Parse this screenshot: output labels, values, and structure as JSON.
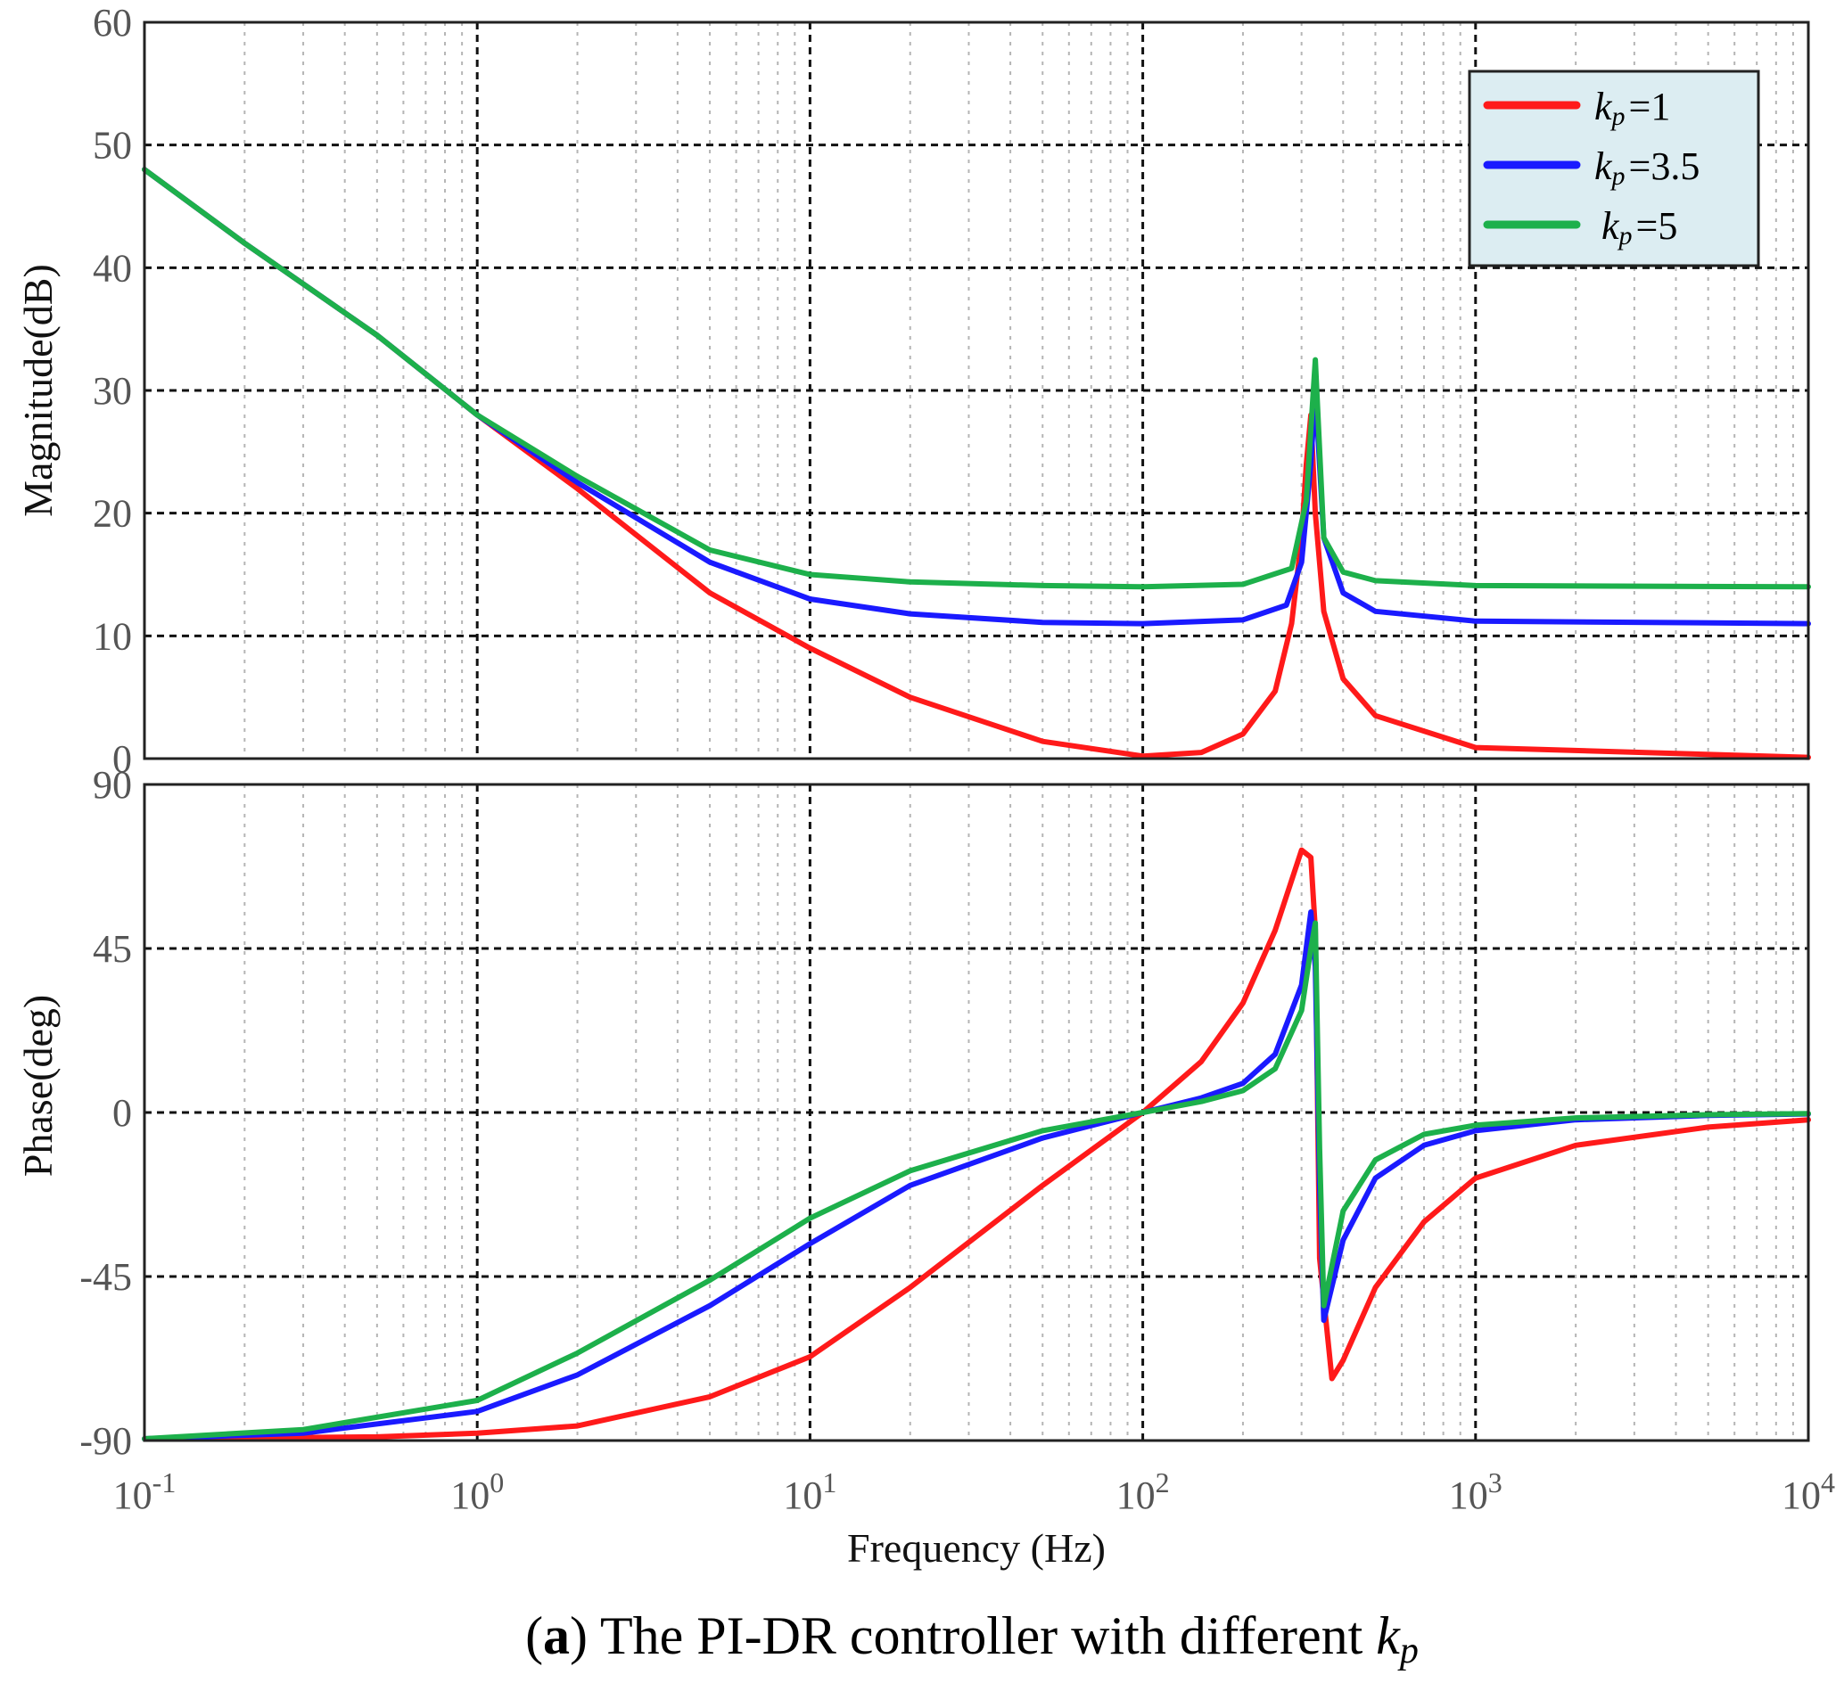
{
  "caption": {
    "bold_letter": "a",
    "text": "The PI-DR controller with different",
    "symbol": "k",
    "subscript": "p"
  },
  "chart_data": [
    {
      "type": "line",
      "panel": "magnitude",
      "xscale": "log",
      "xlim": [
        0.1,
        10000
      ],
      "ylim": [
        0,
        60
      ],
      "ylabel": "Magnitude(dB)",
      "yticks": [
        "0",
        "10",
        "20",
        "30",
        "40",
        "50",
        "60"
      ],
      "legend": {
        "placement": "top-right",
        "background": "#dcedf2",
        "symbol": "k",
        "subscript": "p",
        "entries": [
          "=1",
          "=3.5",
          "=5"
        ]
      },
      "series": [
        {
          "name": "kp=1",
          "color": "#ff1a1a",
          "x": [
            0.1,
            0.2,
            0.5,
            1,
            2,
            5,
            10,
            20,
            50,
            100,
            150,
            200,
            250,
            280,
            300,
            310,
            320,
            330,
            350,
            400,
            500,
            1000,
            10000
          ],
          "values": [
            48,
            42,
            34.5,
            28,
            22,
            13.5,
            9,
            5,
            1.4,
            0.2,
            0.5,
            2,
            5.5,
            11,
            18,
            24,
            28,
            20,
            12,
            6.5,
            3.5,
            0.9,
            0.1
          ]
        },
        {
          "name": "kp=3.5",
          "color": "#1a1aff",
          "x": [
            0.1,
            0.2,
            0.5,
            1,
            2,
            5,
            10,
            20,
            50,
            100,
            200,
            270,
            300,
            320,
            330,
            350,
            400,
            500,
            1000,
            10000
          ],
          "values": [
            48,
            42,
            34.5,
            28,
            22.5,
            16,
            13,
            11.8,
            11.1,
            11,
            11.3,
            12.5,
            16,
            24,
            30,
            18,
            13.5,
            12,
            11.2,
            11
          ]
        },
        {
          "name": "kp=5",
          "color": "#1db04b",
          "x": [
            0.1,
            0.2,
            0.5,
            1,
            2,
            5,
            10,
            20,
            50,
            100,
            200,
            280,
            310,
            330,
            350,
            400,
            500,
            1000,
            10000
          ],
          "values": [
            48,
            42,
            34.5,
            28,
            23,
            17,
            15,
            14.4,
            14.1,
            14,
            14.2,
            15.5,
            21,
            32.5,
            18,
            15.2,
            14.5,
            14.1,
            14
          ]
        }
      ]
    },
    {
      "type": "line",
      "panel": "phase",
      "xscale": "log",
      "xlim": [
        0.1,
        10000
      ],
      "ylim": [
        -90,
        90
      ],
      "xlabel": "Frequency  (Hz)",
      "ylabel": "Phase(deg)",
      "yticks": [
        "-90",
        "-45",
        "0",
        "45",
        "90"
      ],
      "xticks": [
        {
          "base": "10",
          "exp": "-1"
        },
        {
          "base": "10",
          "exp": "0"
        },
        {
          "base": "10",
          "exp": "1"
        },
        {
          "base": "10",
          "exp": "2"
        },
        {
          "base": "10",
          "exp": "3"
        },
        {
          "base": "10",
          "exp": "4"
        }
      ],
      "series": [
        {
          "name": "kp=1",
          "color": "#ff1a1a",
          "x": [
            0.1,
            0.5,
            1,
            2,
            5,
            10,
            20,
            50,
            100,
            150,
            200,
            250,
            300,
            320,
            330,
            340,
            370,
            400,
            500,
            700,
            1000,
            2000,
            5000,
            10000
          ],
          "values": [
            -89.5,
            -89,
            -88,
            -86,
            -78,
            -67,
            -48,
            -20,
            0,
            14,
            30,
            50,
            72,
            70,
            50,
            -40,
            -73,
            -68,
            -48,
            -30,
            -18,
            -9,
            -4,
            -2
          ]
        },
        {
          "name": "kp=3.5",
          "color": "#1a1aff",
          "x": [
            0.1,
            0.3,
            1,
            2,
            5,
            10,
            20,
            50,
            100,
            150,
            200,
            250,
            300,
            320,
            330,
            340,
            350,
            400,
            500,
            700,
            1000,
            2000,
            5000,
            10000
          ],
          "values": [
            -89.5,
            -88,
            -82,
            -72,
            -53,
            -36,
            -20,
            -7,
            0,
            4,
            8,
            16,
            35,
            55,
            40,
            -20,
            -57,
            -35,
            -18,
            -9,
            -5,
            -2,
            -0.8,
            -0.4
          ]
        },
        {
          "name": "kp=5",
          "color": "#1db04b",
          "x": [
            0.1,
            0.3,
            1,
            2,
            5,
            10,
            20,
            50,
            100,
            150,
            200,
            250,
            300,
            320,
            330,
            340,
            350,
            400,
            500,
            700,
            1000,
            2000,
            5000,
            10000
          ],
          "values": [
            -89.5,
            -87,
            -79,
            -66,
            -46,
            -29,
            -16,
            -5,
            0,
            3,
            6,
            12,
            28,
            45,
            52,
            -10,
            -53,
            -27,
            -13,
            -6,
            -3.5,
            -1.5,
            -0.6,
            -0.3
          ]
        }
      ]
    }
  ]
}
